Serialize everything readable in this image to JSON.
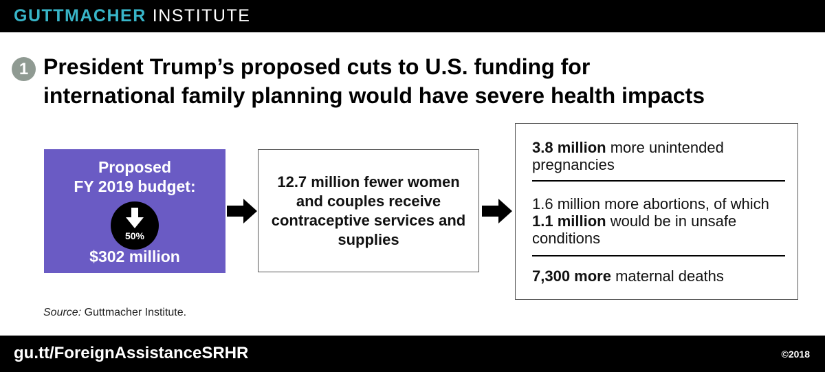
{
  "header": {
    "brand_part1": "GUTTMACHER",
    "brand_part2": "INSTITUTE",
    "brand_color": "#38b5c8"
  },
  "headline": {
    "step_number": "1",
    "line1": "President Trump’s proposed cuts to U.S. funding for",
    "line2": "international family planning would have severe health impacts"
  },
  "budget_box": {
    "line1": "Proposed",
    "line2": "FY 2019 budget:",
    "cut_percent": "50%",
    "cut_icon": "down-arrow-icon",
    "amount": "$302 million",
    "color": "#6a5bc4"
  },
  "services_box": {
    "text": "12.7 million fewer women and couples receive contraceptive services and supplies"
  },
  "impacts": {
    "item1_bold": "3.8 million",
    "item1_rest": " more unintended pregnancies",
    "item2_pre": "1.6 million more abortions, of which ",
    "item2_bold": "1.1 million",
    "item2_post": " would be in unsafe conditions",
    "item3_bold": "7,300 more",
    "item3_rest": " maternal deaths"
  },
  "source": {
    "label": "Source:",
    "text": " Guttmacher Institute."
  },
  "footer": {
    "url": "gu.tt/ForeignAssistanceSRHR",
    "copyright": "©2018"
  }
}
